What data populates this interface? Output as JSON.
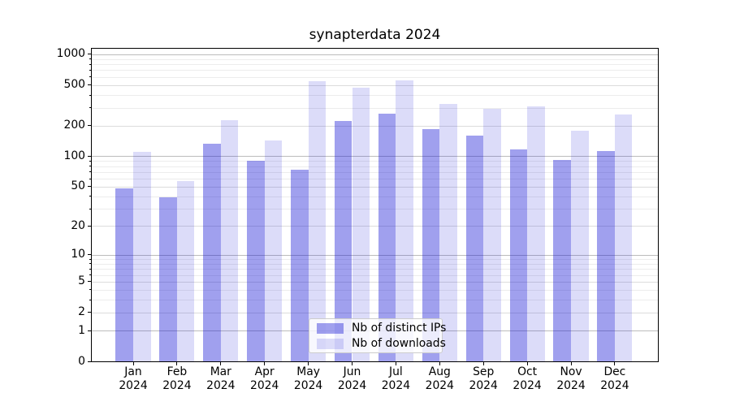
{
  "chart_data": {
    "type": "bar",
    "title": "synapterdata 2024",
    "categories": [
      "Jan",
      "Feb",
      "Mar",
      "Apr",
      "May",
      "Jun",
      "Jul",
      "Aug",
      "Sep",
      "Oct",
      "Nov",
      "Dec"
    ],
    "category_year": "2024",
    "series": [
      {
        "name": "Nb of distinct IPs",
        "color": "rgba(18,18,213,0.4)",
        "color_hex_on_white": "#a0a0ee",
        "values": [
          48,
          39,
          134,
          90,
          73,
          222,
          262,
          185,
          160,
          116,
          92,
          113
        ]
      },
      {
        "name": "Nb of downloads",
        "color": "rgba(18,18,213,0.15)",
        "color_hex_on_white": "#dcdcf9",
        "values": [
          111,
          57,
          226,
          142,
          550,
          474,
          558,
          328,
          293,
          310,
          178,
          257
        ]
      }
    ],
    "xlabel": "",
    "ylabel": "",
    "yscale": "log-like (log10 of 1+value), 0 at baseline",
    "ylim": [
      0,
      1160
    ],
    "yticks": [
      0,
      1,
      2,
      5,
      10,
      20,
      50,
      100,
      200,
      500,
      1000
    ],
    "ytick_labels": [
      "0",
      "1",
      "2",
      "5",
      "10",
      "20",
      "50",
      "100",
      "200",
      "500",
      "1000"
    ],
    "grid": {
      "orientation": "horizontal",
      "major_at": [
        1,
        10,
        100,
        1000
      ],
      "major_color": "#bcbcbc",
      "minor_labeled_color": "#dcdcdc",
      "minor_unlabeled_color": "#ececec"
    },
    "legend": {
      "position": "inside, lower middle",
      "items": [
        "Nb of distinct IPs",
        "Nb of downloads"
      ],
      "background": "rgba(255,255,255,0.8)",
      "border_color": "#cccccc"
    }
  }
}
